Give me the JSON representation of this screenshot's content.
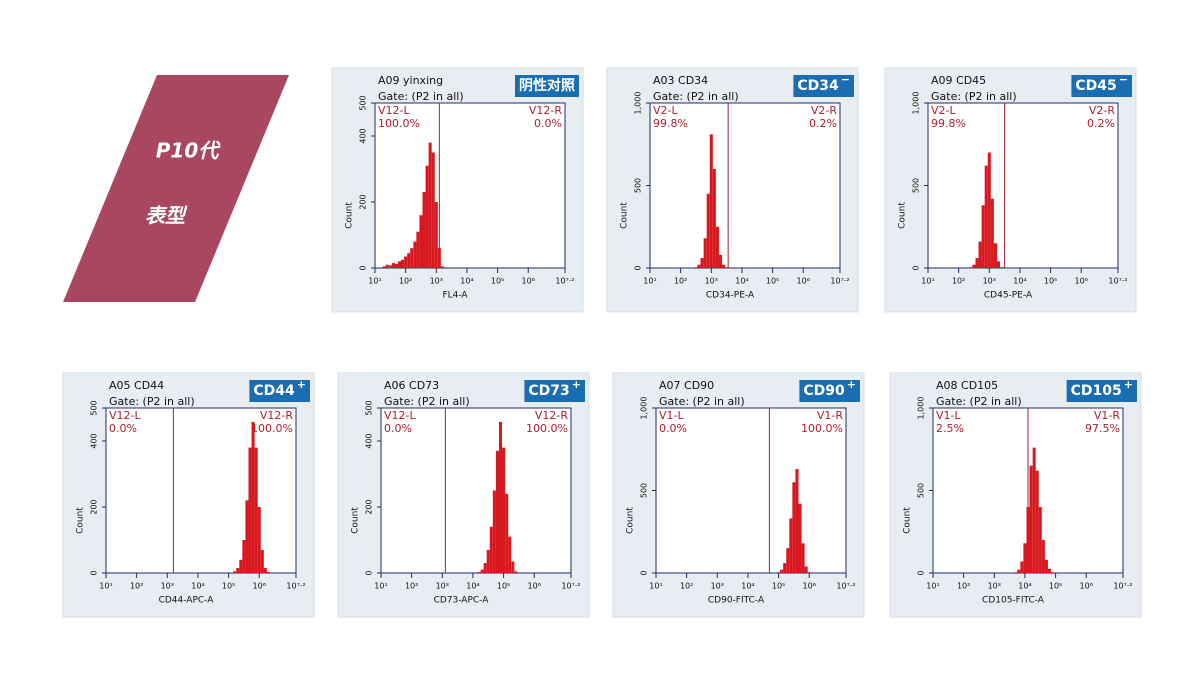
{
  "banner": {
    "title": "P10代",
    "subtitle": "表型"
  },
  "chart_data": [
    {
      "type": "histogram",
      "title": "A09 yinxing",
      "gate_text": "Gate: (P2 in all)",
      "badge": "阴性对照",
      "x_label": "FL4-A",
      "y_label": "Count",
      "log_x": true,
      "color": "#d7191f",
      "xlim": [
        10,
        15848932
      ],
      "xticks": [
        {
          "value": 10,
          "label": "10¹"
        },
        {
          "value": 100,
          "label": "10²"
        },
        {
          "value": 1000,
          "label": "10³"
        },
        {
          "value": 10000,
          "label": "10⁴"
        },
        {
          "value": 100000,
          "label": "10⁵"
        },
        {
          "value": 1000000,
          "label": "10⁶"
        },
        {
          "value": 15848932,
          "label": "10⁷·²"
        }
      ],
      "ylim": [
        0,
        500
      ],
      "yticks": [
        0,
        200,
        400,
        500
      ],
      "x": [
        20,
        25,
        32,
        40,
        50,
        63,
        79,
        100,
        126,
        158,
        200,
        251,
        316,
        398,
        501,
        631,
        794,
        1000,
        1259,
        1585
      ],
      "values": [
        5,
        10,
        8,
        15,
        12,
        20,
        25,
        35,
        45,
        60,
        80,
        110,
        160,
        230,
        310,
        380,
        350,
        200,
        60,
        5
      ],
      "gate": 1259,
      "regions": [
        {
          "name": "V12-L",
          "value": 100.0,
          "value_label": "100.0%"
        },
        {
          "name": "V12-R",
          "value": 0.0,
          "value_label": "0.0%"
        }
      ]
    },
    {
      "type": "histogram",
      "title": "A03 CD34",
      "gate_text": "Gate: (P2 in all)",
      "badge": "CD34",
      "badge_sign": "−",
      "x_label": "CD34-PE-A",
      "y_label": "Count",
      "log_x": true,
      "color": "#d7191f",
      "xlim": [
        10,
        15848932
      ],
      "xticks": [
        {
          "value": 10,
          "label": "10¹"
        },
        {
          "value": 100,
          "label": "10²"
        },
        {
          "value": 1000,
          "label": "10³"
        },
        {
          "value": 10000,
          "label": "10⁴"
        },
        {
          "value": 100000,
          "label": "10⁵"
        },
        {
          "value": 1000000,
          "label": "10⁶"
        },
        {
          "value": 15848932,
          "label": "10⁷·²"
        }
      ],
      "ylim": [
        0,
        1000
      ],
      "yticks": [
        0,
        500,
        {
          "value": 1000,
          "label": "1,000"
        }
      ],
      "x": [
        316,
        398,
        501,
        631,
        794,
        1000,
        1259,
        1585,
        1995,
        2512,
        3162
      ],
      "values": [
        5,
        20,
        60,
        180,
        450,
        810,
        600,
        250,
        80,
        20,
        5
      ],
      "gate": 3550,
      "regions": [
        {
          "name": "V2-L",
          "value": 99.8,
          "value_label": "99.8%"
        },
        {
          "name": "V2-R",
          "value": 0.2,
          "value_label": "0.2%"
        }
      ]
    },
    {
      "type": "histogram",
      "title": "A09 CD45",
      "gate_text": "Gate: (P2 in all)",
      "badge": "CD45",
      "badge_sign": "−",
      "x_label": "CD45-PE-A",
      "y_label": "Count",
      "log_x": true,
      "color": "#d7191f",
      "xlim": [
        10,
        15848932
      ],
      "xticks": [
        {
          "value": 10,
          "label": "10¹"
        },
        {
          "value": 100,
          "label": "10²"
        },
        {
          "value": 1000,
          "label": "10³"
        },
        {
          "value": 10000,
          "label": "10⁴"
        },
        {
          "value": 100000,
          "label": "10⁵"
        },
        {
          "value": 1000000,
          "label": "10⁶"
        },
        {
          "value": 15848932,
          "label": "10⁷·²"
        }
      ],
      "ylim": [
        0,
        1000
      ],
      "yticks": [
        0,
        500,
        {
          "value": 1000,
          "label": "1,000"
        }
      ],
      "x": [
        251,
        316,
        398,
        501,
        631,
        794,
        1000,
        1259,
        1585,
        1995,
        2512
      ],
      "values": [
        5,
        20,
        60,
        160,
        380,
        620,
        700,
        420,
        150,
        40,
        5
      ],
      "gate": 3160,
      "regions": [
        {
          "name": "V2-L",
          "value": 99.8,
          "value_label": "99.8%"
        },
        {
          "name": "V2-R",
          "value": 0.2,
          "value_label": "0.2%"
        }
      ]
    },
    {
      "type": "histogram",
      "title": "A05 CD44",
      "gate_text": "Gate: (P2 in all)",
      "badge": "CD44",
      "badge_sign": "+",
      "x_label": "CD44-APC-A",
      "y_label": "Count",
      "log_x": true,
      "color": "#d7191f",
      "xlim": [
        10,
        15848932
      ],
      "xticks": [
        {
          "value": 10,
          "label": "10¹"
        },
        {
          "value": 100,
          "label": "10²"
        },
        {
          "value": 1000,
          "label": "10³"
        },
        {
          "value": 10000,
          "label": "10⁴"
        },
        {
          "value": 100000,
          "label": "10⁵"
        },
        {
          "value": 1000000,
          "label": "10⁶"
        },
        {
          "value": 15848932,
          "label": "10⁷·²"
        }
      ],
      "ylim": [
        0,
        500
      ],
      "yticks": [
        0,
        200,
        400,
        500
      ],
      "x": [
        158000,
        200000,
        251000,
        316000,
        398000,
        501000,
        631000,
        794000,
        1000000,
        1260000,
        1580000,
        2000000
      ],
      "values": [
        5,
        15,
        40,
        100,
        220,
        380,
        458,
        380,
        200,
        70,
        15,
        3
      ],
      "gate": 1580,
      "regions": [
        {
          "name": "V12-L",
          "value": 0.0,
          "value_label": "0.0%"
        },
        {
          "name": "V12-R",
          "value": 100.0,
          "value_label": "100.0%"
        }
      ]
    },
    {
      "type": "histogram",
      "title": "A06 CD73",
      "gate_text": "Gate: (P2 in all)",
      "badge": "CD73",
      "badge_sign": "+",
      "x_label": "CD73-APC-A",
      "y_label": "Count",
      "log_x": true,
      "color": "#d7191f",
      "xlim": [
        10,
        15848932
      ],
      "xticks": [
        {
          "value": 10,
          "label": "10¹"
        },
        {
          "value": 100,
          "label": "10²"
        },
        {
          "value": 1000,
          "label": "10³"
        },
        {
          "value": 10000,
          "label": "10⁴"
        },
        {
          "value": 100000,
          "label": "10⁵"
        },
        {
          "value": 1000000,
          "label": "10⁶"
        },
        {
          "value": 15848932,
          "label": "10⁷·²"
        }
      ],
      "ylim": [
        0,
        500
      ],
      "yticks": [
        0,
        200,
        400,
        500
      ],
      "x": [
        15800,
        20000,
        25100,
        31600,
        39800,
        50100,
        63100,
        79400,
        100000,
        126000,
        158000,
        200000,
        251000
      ],
      "values": [
        3,
        10,
        30,
        70,
        140,
        250,
        370,
        458,
        380,
        240,
        110,
        35,
        5
      ],
      "gate": 1260,
      "regions": [
        {
          "name": "V12-L",
          "value": 0.0,
          "value_label": "0.0%"
        },
        {
          "name": "V12-R",
          "value": 100.0,
          "value_label": "100.0%"
        }
      ]
    },
    {
      "type": "histogram",
      "title": "A07 CD90",
      "gate_text": "Gate: (P2 in all)",
      "badge": "CD90",
      "badge_sign": "+",
      "x_label": "CD90-FITC-A",
      "y_label": "Count",
      "log_x": true,
      "color": "#d7191f",
      "xlim": [
        10,
        15848932
      ],
      "xticks": [
        {
          "value": 10,
          "label": "10¹"
        },
        {
          "value": 100,
          "label": "10²"
        },
        {
          "value": 1000,
          "label": "10³"
        },
        {
          "value": 10000,
          "label": "10⁴"
        },
        {
          "value": 100000,
          "label": "10⁵"
        },
        {
          "value": 1000000,
          "label": "10⁶"
        },
        {
          "value": 15848932,
          "label": "10⁷·²"
        }
      ],
      "ylim": [
        0,
        1000
      ],
      "yticks": [
        0,
        500,
        {
          "value": 1000,
          "label": "1,000"
        }
      ],
      "x": [
        100000,
        126000,
        158000,
        200000,
        251000,
        316000,
        398000,
        501000,
        631000,
        794000,
        1000000
      ],
      "values": [
        5,
        20,
        60,
        150,
        330,
        550,
        630,
        420,
        180,
        40,
        5
      ],
      "gate": 50100,
      "regions": [
        {
          "name": "V1-L",
          "value": 0.0,
          "value_label": "0.0%"
        },
        {
          "name": "V1-R",
          "value": 100.0,
          "value_label": "100.0%"
        }
      ]
    },
    {
      "type": "histogram",
      "title": "A08 CD105",
      "gate_text": "Gate: (P2 in all)",
      "badge": "CD105",
      "badge_sign": "+",
      "x_label": "CD105-FITC-A",
      "y_label": "Count",
      "log_x": true,
      "color": "#d7191f",
      "xlim": [
        10,
        15848932
      ],
      "xticks": [
        {
          "value": 10,
          "label": "10¹"
        },
        {
          "value": 100,
          "label": "10²"
        },
        {
          "value": 1000,
          "label": "10³"
        },
        {
          "value": 10000,
          "label": "10⁴"
        },
        {
          "value": 100000,
          "label": "10⁵"
        },
        {
          "value": 1000000,
          "label": "10⁶"
        },
        {
          "value": 15848932,
          "label": "10⁷·²"
        }
      ],
      "ylim": [
        0,
        1000
      ],
      "yticks": [
        0,
        500,
        {
          "value": 1000,
          "label": "1,000"
        }
      ],
      "x": [
        5010,
        6310,
        7940,
        10000,
        12600,
        15800,
        20000,
        25100,
        31600,
        39800,
        50100,
        63100,
        79400
      ],
      "values": [
        5,
        20,
        70,
        180,
        400,
        650,
        760,
        620,
        400,
        200,
        80,
        25,
        5
      ],
      "gate": 12600,
      "regions": [
        {
          "name": "V1-L",
          "value": 2.5,
          "value_label": "2.5%"
        },
        {
          "name": "V1-R",
          "value": 97.5,
          "value_label": "97.5%"
        }
      ]
    }
  ]
}
